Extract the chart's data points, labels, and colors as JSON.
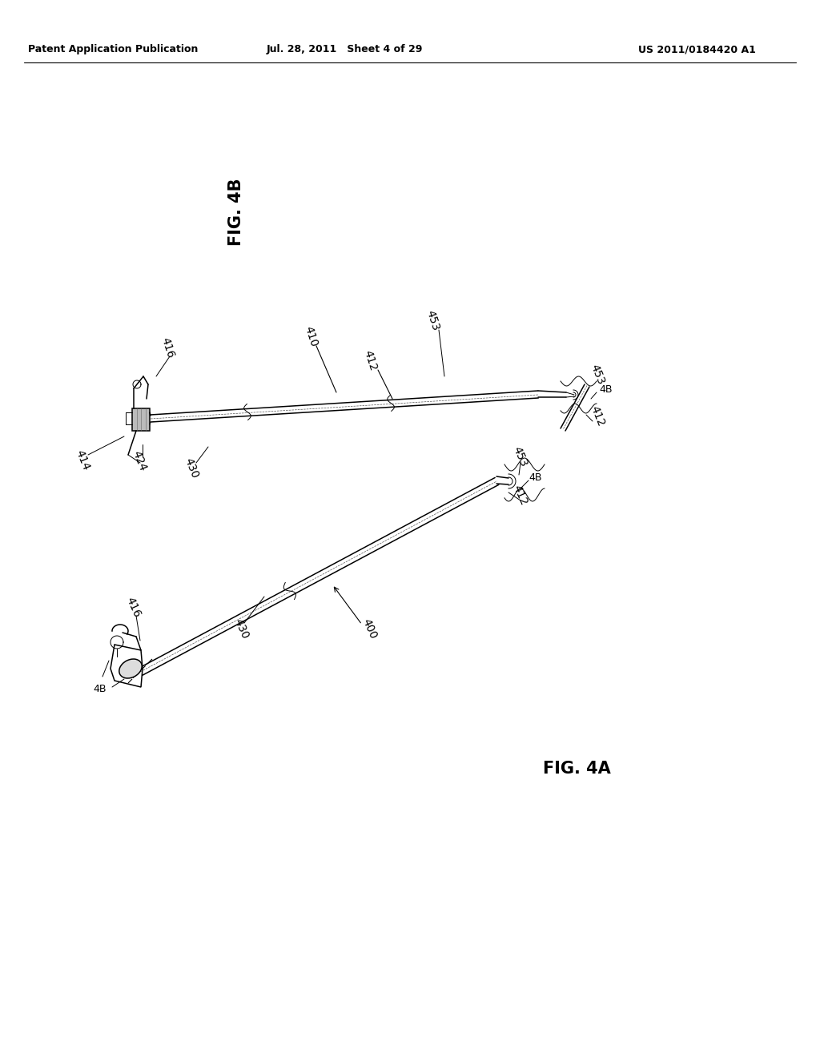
{
  "background_color": "#ffffff",
  "header_left": "Patent Application Publication",
  "header_center": "Jul. 28, 2011   Sheet 4 of 29",
  "header_right": "US 2011/0184420 A1",
  "fig4b_label": "FIG. 4B",
  "fig4a_label": "FIG. 4A",
  "text_color": "#000000",
  "line_color": "#000000",
  "header_fontsize": 9,
  "label_fontsize": 15,
  "ref_fontsize": 10
}
